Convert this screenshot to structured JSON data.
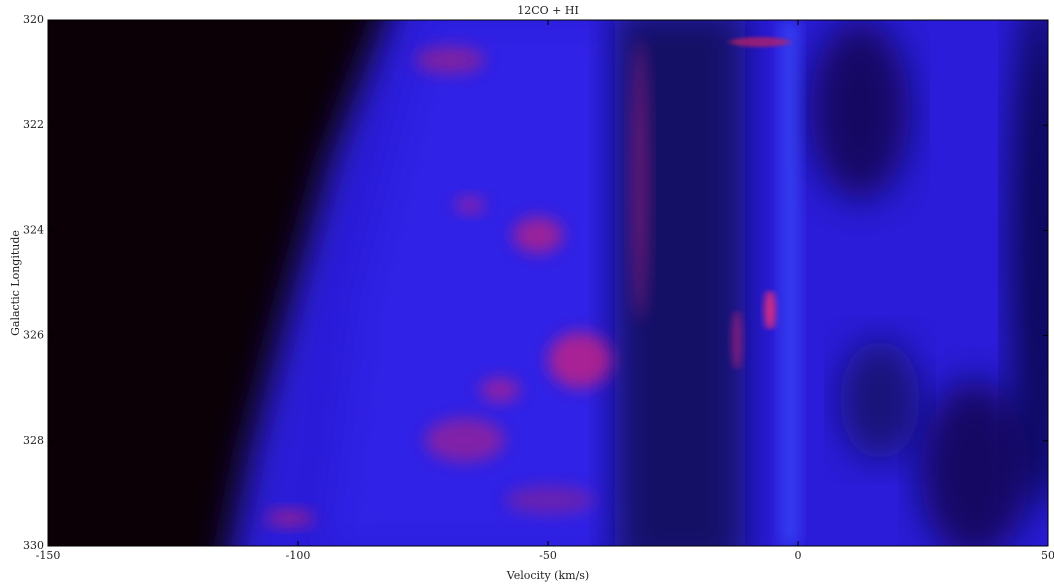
{
  "chart_data": {
    "type": "image",
    "title": "12CO + HI",
    "x_label": "Velocity (km/s)",
    "y_label": "Galactic Longitude",
    "xlim": [
      -150,
      50
    ],
    "xticks": [
      -150,
      -100,
      -50,
      0,
      50
    ],
    "ylim": [
      320,
      330
    ],
    "yticks": [
      320,
      322,
      324,
      326,
      328,
      330
    ],
    "y_inverted": true
  }
}
